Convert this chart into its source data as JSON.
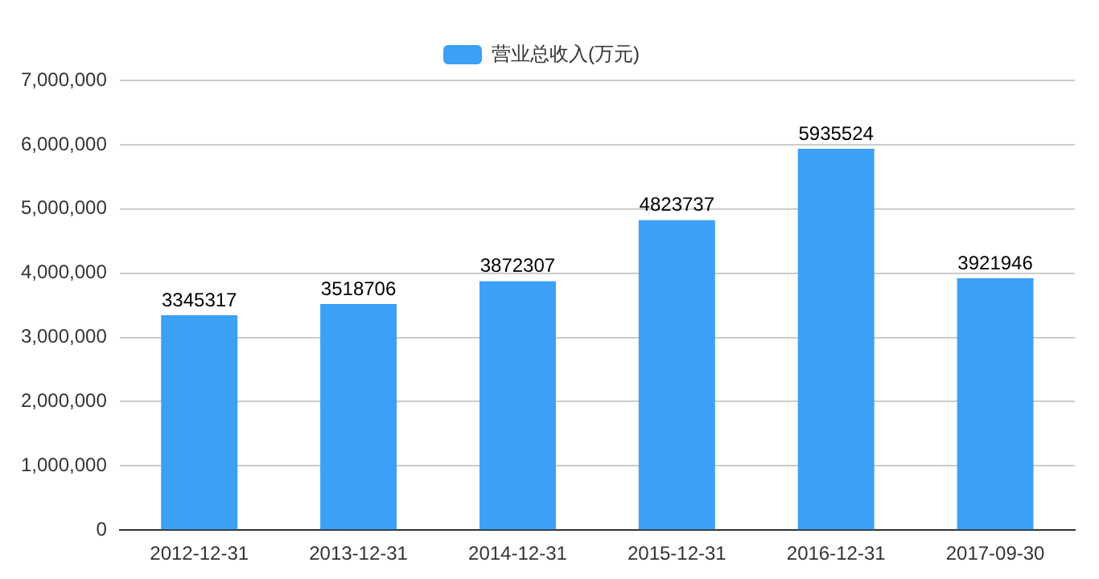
{
  "chart_data": {
    "type": "bar",
    "categories": [
      "2012-12-31",
      "2013-12-31",
      "2014-12-31",
      "2015-12-31",
      "2016-12-31",
      "2017-09-30"
    ],
    "series": [
      {
        "name": "营业总收入(万元)",
        "color": "#3ca0f6",
        "values": [
          3345317,
          3518706,
          3872307,
          4823737,
          5935524,
          3921946
        ]
      }
    ],
    "ylim": [
      0,
      7000000
    ],
    "yticks": [
      0,
      {
        "value": 1000000,
        "label": "1,000,000"
      },
      {
        "value": 2000000,
        "label": "2,000,000"
      },
      {
        "value": 3000000,
        "label": "3,000,000"
      },
      {
        "value": 4000000,
        "label": "4,000,000"
      },
      {
        "value": 5000000,
        "label": "5,000,000"
      },
      {
        "value": 6000000,
        "label": "6,000,000"
      },
      {
        "value": 7000000,
        "label": "7,000,000"
      }
    ],
    "grid": "y",
    "legend": "top",
    "data_labels": true
  }
}
